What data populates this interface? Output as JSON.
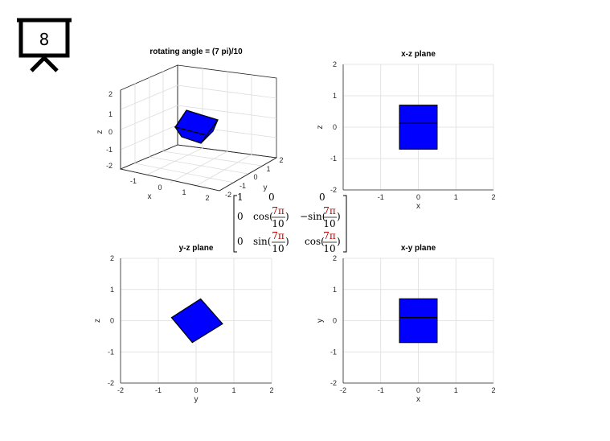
{
  "slide_number": "8",
  "chart_data": [
    {
      "type": "surface3d",
      "title": "rotating angle = (7 pi)/10",
      "xlabel": "x",
      "ylabel": "y",
      "zlabel": "z",
      "xlim": [
        -2,
        2
      ],
      "ylim": [
        -2,
        2
      ],
      "zlim": [
        -2,
        2
      ],
      "xticks": [
        "-1",
        "0",
        "1",
        "2"
      ],
      "yticks": [
        "-2",
        "-1",
        "0",
        "1",
        "2"
      ],
      "zticks": [
        "-2",
        "-1",
        "0",
        "1",
        "2"
      ],
      "face_color": "#0000ff",
      "grid": true
    },
    {
      "type": "polygon",
      "title": "x-z plane",
      "xlabel": "x",
      "ylabel": "z",
      "xlim": [
        -2,
        2
      ],
      "ylim": [
        -2,
        2
      ],
      "xticks": [
        "-1",
        "0",
        "1",
        "2"
      ],
      "yticks": [
        "-2",
        "-1",
        "0",
        "1",
        "2"
      ],
      "polygons": [
        [
          [
            -0.5,
            0.12
          ],
          [
            0.5,
            0.12
          ],
          [
            0.5,
            0.7
          ],
          [
            -0.5,
            0.7
          ]
        ],
        [
          [
            -0.5,
            -0.7
          ],
          [
            0.5,
            -0.7
          ],
          [
            0.5,
            0.12
          ],
          [
            -0.5,
            0.12
          ]
        ]
      ],
      "face_color": "#0000ff",
      "grid": true
    },
    {
      "type": "polygon",
      "title": "y-z plane",
      "xlabel": "y",
      "ylabel": "z",
      "xlim": [
        -2,
        2
      ],
      "ylim": [
        -2,
        2
      ],
      "xticks": [
        "-2",
        "-1",
        "0",
        "1",
        "2"
      ],
      "yticks": [
        "-2",
        "-1",
        "0",
        "1",
        "2"
      ],
      "polygons": [
        [
          [
            -0.65,
            0.1
          ],
          [
            0.12,
            0.7
          ],
          [
            0.7,
            -0.1
          ],
          [
            -0.1,
            -0.7
          ]
        ]
      ],
      "face_color": "#0000ff",
      "grid": true
    },
    {
      "type": "polygon",
      "title": "x-y plane",
      "xlabel": "x",
      "ylabel": "y",
      "xlim": [
        -2,
        2
      ],
      "ylim": [
        -2,
        2
      ],
      "xticks": [
        "-2",
        "-1",
        "0",
        "1",
        "2"
      ],
      "yticks": [
        "-2",
        "-1",
        "0",
        "1",
        "2"
      ],
      "polygons": [
        [
          [
            -0.5,
            0.1
          ],
          [
            0.5,
            0.1
          ],
          [
            0.5,
            0.7
          ],
          [
            -0.5,
            0.7
          ]
        ],
        [
          [
            -0.5,
            -0.7
          ],
          [
            0.5,
            -0.7
          ],
          [
            0.5,
            0.1
          ],
          [
            -0.5,
            0.1
          ]
        ]
      ],
      "face_color": "#0000ff",
      "grid": true
    }
  ],
  "matrix": {
    "row1": [
      "1",
      "0",
      "0"
    ],
    "row2": [
      "0",
      "cos(",
      ")",
      "−sin(",
      ")"
    ],
    "row3": [
      "0",
      "sin(",
      ")",
      "cos(",
      ")"
    ],
    "numerator": "7π",
    "denominator": "10"
  }
}
